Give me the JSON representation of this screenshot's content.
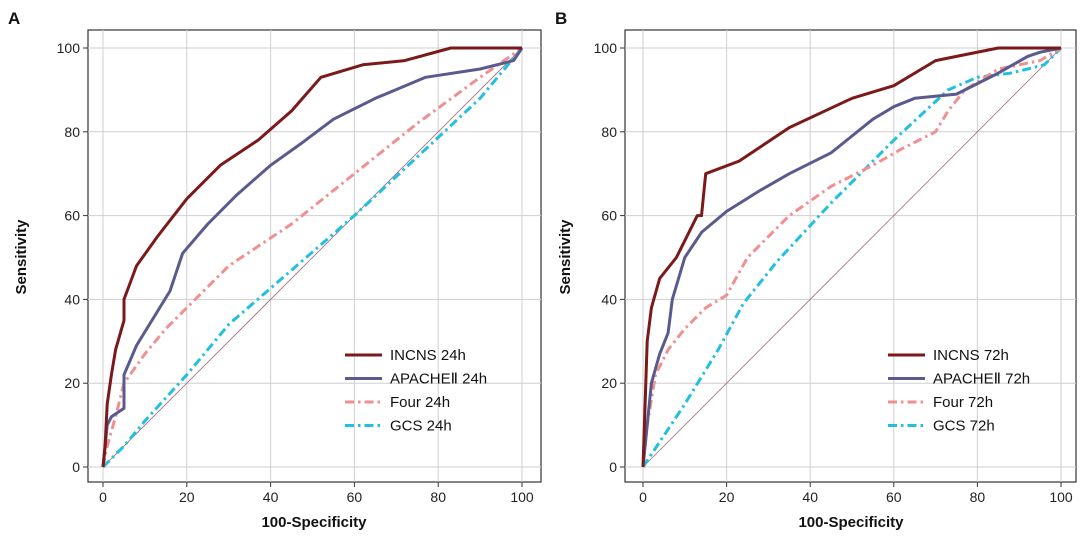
{
  "chart_data": [
    {
      "type": "line",
      "panel_label": "A",
      "xlabel": "100-Specificity",
      "ylabel": "Sensitivity",
      "xlim": [
        0,
        100
      ],
      "ylim": [
        0,
        100
      ],
      "xticks": [
        0,
        20,
        40,
        60,
        80,
        100
      ],
      "yticks": [
        0,
        20,
        40,
        60,
        80,
        100
      ],
      "grid": true,
      "legend_position": "bottom-right",
      "reference_line": {
        "x": [
          0,
          100
        ],
        "y": [
          0,
          100
        ],
        "color": "#a06a78"
      },
      "series": [
        {
          "name": "INCNS 24h",
          "color": "#7a1a1a",
          "style": "solid",
          "x": [
            0,
            0.5,
            1,
            2,
            3,
            5,
            5,
            8,
            13,
            20,
            28,
            37,
            45,
            52,
            62,
            72,
            83,
            100
          ],
          "y": [
            0,
            5,
            15,
            22,
            28,
            35,
            40,
            48,
            55,
            64,
            72,
            78,
            85,
            93,
            96,
            97,
            100,
            100
          ]
        },
        {
          "name": "APACHEⅡ 24h",
          "color": "#5a5a8e",
          "style": "solid",
          "x": [
            0,
            0.5,
            1,
            2,
            5,
            5,
            8,
            16,
            19,
            25,
            32,
            40,
            47,
            55,
            65,
            77,
            90,
            98,
            100
          ],
          "y": [
            0,
            5,
            10,
            12,
            14,
            22,
            29,
            42,
            51,
            58,
            65,
            72,
            77,
            83,
            88,
            93,
            95,
            97,
            100
          ],
          "extra": null
        },
        {
          "name": "Four 24h",
          "color": "#f09090",
          "style": "dashdot",
          "x": [
            0,
            1,
            3,
            5,
            10,
            15,
            22,
            30,
            45,
            60,
            75,
            90,
            100
          ],
          "y": [
            0,
            5,
            12,
            20,
            27,
            33,
            40,
            48,
            58,
            70,
            82,
            93,
            100
          ]
        },
        {
          "name": "GCS 24h",
          "color": "#22c0e0",
          "style": "dashdot",
          "x": [
            0,
            5,
            10,
            20,
            30,
            45,
            60,
            75,
            90,
            100
          ],
          "y": [
            0,
            5,
            11,
            22,
            34,
            47,
            60,
            74,
            88,
            100
          ]
        }
      ]
    },
    {
      "type": "line",
      "panel_label": "B",
      "xlabel": "100-Specificity",
      "ylabel": "Sensitivity",
      "xlim": [
        0,
        100
      ],
      "ylim": [
        0,
        100
      ],
      "xticks": [
        0,
        20,
        40,
        60,
        80,
        100
      ],
      "yticks": [
        0,
        20,
        40,
        60,
        80,
        100
      ],
      "grid": true,
      "legend_position": "bottom-right",
      "reference_line": {
        "x": [
          0,
          100
        ],
        "y": [
          0,
          100
        ],
        "color": "#a06a78"
      },
      "series": [
        {
          "name": "INCNS 72h",
          "color": "#7a1a1a",
          "style": "solid",
          "x": [
            0,
            0.5,
            1,
            2,
            4,
            8,
            13,
            14,
            15,
            23,
            35,
            50,
            60,
            70,
            75,
            85,
            100
          ],
          "y": [
            0,
            15,
            30,
            38,
            45,
            50,
            60,
            60,
            70,
            73,
            81,
            88,
            91,
            97,
            98,
            100,
            100
          ]
        },
        {
          "name": "APACHEⅡ 72h",
          "color": "#5a5a8e",
          "style": "solid",
          "x": [
            0,
            0.5,
            1,
            2,
            4,
            6,
            7,
            10,
            14,
            20,
            28,
            35,
            45,
            50,
            55,
            60,
            65,
            75,
            85,
            92,
            95,
            100
          ],
          "y": [
            0,
            5,
            10,
            20,
            27,
            32,
            40,
            50,
            56,
            61,
            66,
            70,
            75,
            79,
            83,
            86,
            88,
            89,
            94,
            98,
            99,
            100
          ]
        },
        {
          "name": "Four 72h",
          "color": "#f09090",
          "style": "dashdot",
          "x": [
            0,
            1,
            3,
            6,
            10,
            15,
            20,
            25,
            35,
            45,
            55,
            62,
            70,
            73,
            77,
            85,
            95,
            100
          ],
          "y": [
            0,
            10,
            22,
            28,
            33,
            38,
            41,
            50,
            60,
            67,
            72,
            76,
            80,
            85,
            90,
            95,
            97,
            100
          ]
        },
        {
          "name": "GCS 72h",
          "color": "#22c0e0",
          "style": "dashdot",
          "x": [
            0,
            10,
            18,
            24,
            32,
            45,
            60,
            73,
            80,
            88,
            92,
            96,
            100
          ],
          "y": [
            0,
            15,
            28,
            39,
            49,
            63,
            78,
            90,
            93,
            94,
            95,
            96,
            100
          ]
        }
      ]
    }
  ]
}
